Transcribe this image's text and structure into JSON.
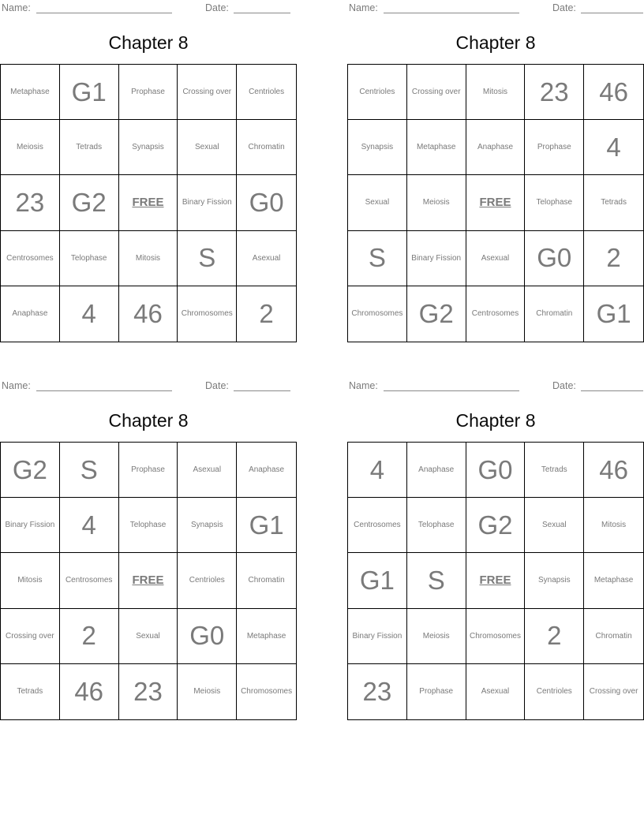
{
  "header": {
    "name_label": "Name:",
    "date_label": "Date:"
  },
  "colors": {
    "cell_text": "#7a7a7a",
    "grid_border": "#000000",
    "title_text": "#0b0b0b"
  },
  "free_cell_label": "FREE",
  "cards": [
    {
      "title": "Chapter 8",
      "grid": [
        [
          "Metaphase",
          "G1",
          "Prophase",
          "Crossing over",
          "Centrioles"
        ],
        [
          "Meiosis",
          "Tetrads",
          "Synapsis",
          "Sexual",
          "Chromatin"
        ],
        [
          "23",
          "G2",
          "FREE",
          "Binary Fission",
          "G0"
        ],
        [
          "Centrosomes",
          "Telophase",
          "Mitosis",
          "S",
          "Asexual"
        ],
        [
          "Anaphase",
          "4",
          "46",
          "Chromosomes",
          "2"
        ]
      ]
    },
    {
      "title": "Chapter 8",
      "grid": [
        [
          "Centrioles",
          "Crossing over",
          "Mitosis",
          "23",
          "46"
        ],
        [
          "Synapsis",
          "Metaphase",
          "Anaphase",
          "Prophase",
          "4"
        ],
        [
          "Sexual",
          "Meiosis",
          "FREE",
          "Telophase",
          "Tetrads"
        ],
        [
          "S",
          "Binary Fission",
          "Asexual",
          "G0",
          "2"
        ],
        [
          "Chromosomes",
          "G2",
          "Centrosomes",
          "Chromatin",
          "G1"
        ]
      ]
    },
    {
      "title": "Chapter 8",
      "grid": [
        [
          "G2",
          "S",
          "Prophase",
          "Asexual",
          "Anaphase"
        ],
        [
          "Binary Fission",
          "4",
          "Telophase",
          "Synapsis",
          "G1"
        ],
        [
          "Mitosis",
          "Centrosomes",
          "FREE",
          "Centrioles",
          "Chromatin"
        ],
        [
          "Crossing over",
          "2",
          "Sexual",
          "G0",
          "Metaphase"
        ],
        [
          "Tetrads",
          "46",
          "23",
          "Meiosis",
          "Chromosomes"
        ]
      ]
    },
    {
      "title": "Chapter 8",
      "grid": [
        [
          "4",
          "Anaphase",
          "G0",
          "Tetrads",
          "46"
        ],
        [
          "Centrosomes",
          "Telophase",
          "G2",
          "Sexual",
          "Mitosis"
        ],
        [
          "G1",
          "S",
          "FREE",
          "Synapsis",
          "Metaphase"
        ],
        [
          "Binary Fission",
          "Meiosis",
          "Chromosomes",
          "2",
          "Chromatin"
        ],
        [
          "23",
          "Prophase",
          "Asexual",
          "Centrioles",
          "Crossing over"
        ]
      ]
    }
  ]
}
